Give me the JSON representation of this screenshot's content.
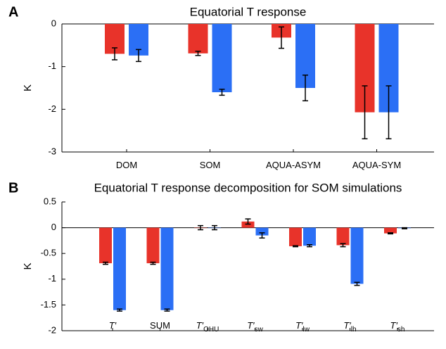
{
  "chart_data": [
    {
      "type": "bar",
      "panel": "A",
      "title": "Equatorial T response",
      "ylabel": "K",
      "categories": [
        "DOM",
        "SOM",
        "AQUA-ASYM",
        "AQUA-SYM"
      ],
      "series": [
        {
          "color": "#e8332a",
          "values": [
            -0.7,
            -0.69,
            -0.32,
            -2.07
          ],
          "errors": [
            0.14,
            0.05,
            0.25,
            0.62
          ]
        },
        {
          "color": "#2b6ff5",
          "values": [
            -0.74,
            -1.6,
            -1.5,
            -2.07
          ],
          "errors": [
            0.14,
            0.07,
            0.3,
            0.62
          ]
        }
      ],
      "ylim": [
        -3,
        0
      ],
      "yticks": [
        0,
        -1,
        -2,
        -3
      ]
    },
    {
      "type": "bar",
      "panel": "B",
      "title": "Equatorial T response decomposition for SOM simulations",
      "ylabel": "K",
      "categories": [
        "T′",
        "SUM",
        "T′",
        "T′",
        "T′",
        "T′",
        "T′"
      ],
      "category_subscripts": [
        null,
        null,
        "OHU",
        "sw",
        "lw",
        "lh",
        "sh"
      ],
      "series": [
        {
          "color": "#e8332a",
          "values": [
            -0.69,
            -0.69,
            0.0,
            0.12,
            -0.36,
            -0.34,
            -0.11
          ],
          "errors": [
            0.02,
            0.02,
            0.04,
            0.05,
            0.01,
            0.03,
            0.01
          ]
        },
        {
          "color": "#2b6ff5",
          "values": [
            -1.6,
            -1.6,
            0.0,
            -0.15,
            -0.35,
            -1.09,
            -0.01
          ],
          "errors": [
            0.02,
            0.02,
            0.04,
            0.05,
            0.02,
            0.03,
            0.01
          ]
        }
      ],
      "ylim": [
        -2,
        0.5
      ],
      "yticks": [
        0.5,
        0,
        -0.5,
        -1,
        -1.5,
        -2
      ]
    }
  ]
}
